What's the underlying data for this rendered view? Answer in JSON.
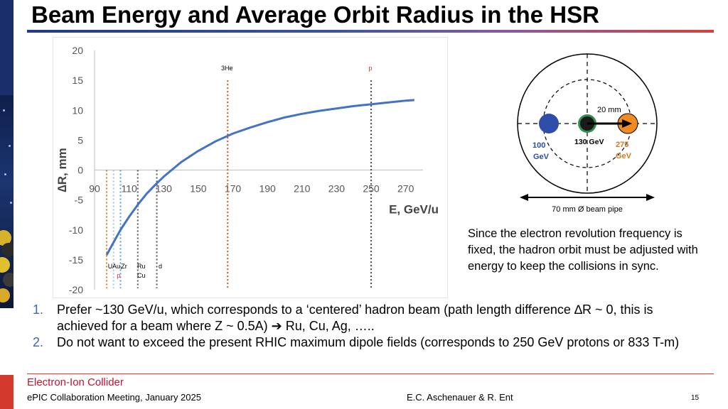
{
  "slide": {
    "title": "Beam Energy and Average Orbit Radius in the HSR",
    "page_number": "15"
  },
  "footer": {
    "logo_text": "Electron-Ion Collider",
    "meeting": "ePIC Collaboration Meeting, January 2025",
    "authors": "E.C. Aschenauer & R. Ent"
  },
  "ring_diagram": {
    "label_20mm": "20 mm",
    "label_100": "100",
    "label_100_unit": "GeV",
    "label_130": "130 GeV",
    "label_275": "275",
    "label_275_unit": "GeV",
    "pipe_label": "70 mm Ø beam pipe",
    "colors": {
      "low": "#2e4da8",
      "mid": "#2f8f4a",
      "high": "#f08a22",
      "mid_label": "#000000",
      "low_label": "#2e4da8",
      "high_label": "#d07820"
    }
  },
  "explanation": "Since the electron revolution frequency is fixed, the hadron orbit must be adjusted with energy to keep the collisions in sync.",
  "bullets": [
    {
      "num": "1.",
      "text": "Prefer ~130 GeV/u, which corresponds to a ‘centered’ hadron beam (path length difference ∆R ~ 0, this is achieved for a beam where Z ~ 0.5A) ➔ Ru, Cu, Ag, ….."
    },
    {
      "num": "2.",
      "text": "Do not want to exceed the present RHIC maximum dipole fields (corresponds to 250 GeV protons or 833 T-m)"
    }
  ],
  "chart_data": {
    "type": "line",
    "title": "",
    "xlabel": "E, GeV/u",
    "ylabel": "∆R, mm",
    "xlim": [
      90,
      280
    ],
    "ylim": [
      -20,
      20
    ],
    "x_ticks": [
      90,
      110,
      130,
      150,
      170,
      190,
      210,
      230,
      250,
      270
    ],
    "y_ticks": [
      20,
      15,
      10,
      5,
      0,
      -5,
      -10,
      -15,
      -20
    ],
    "grid": false,
    "series": [
      {
        "color": "#4472c4",
        "x": [
          97,
          100,
          105,
          110,
          115,
          120,
          125,
          130,
          140,
          150,
          160,
          170,
          180,
          190,
          200,
          210,
          220,
          230,
          240,
          250,
          260,
          270,
          275
        ],
        "y": [
          -14.2,
          -12.6,
          -10.0,
          -7.8,
          -5.8,
          -4.0,
          -2.5,
          -1.1,
          1.3,
          3.2,
          4.8,
          6.1,
          7.1,
          8.0,
          8.8,
          9.4,
          9.9,
          10.3,
          10.7,
          11.0,
          11.3,
          11.6,
          11.7
        ]
      }
    ],
    "markers": [
      {
        "x": 97,
        "y_top": 0,
        "color": "#e07b30",
        "label": "U",
        "label_color": "#000000"
      },
      {
        "x": 101,
        "y_top": 0,
        "color": "#a7c4e0",
        "label": "Au,",
        "label_color": "#000000",
        "sublabel": "p",
        "sublabel_color": "#d32f2f"
      },
      {
        "x": 105,
        "y_top": 0,
        "color": "#5b9bd5",
        "label": "Zr",
        "label_color": "#000000"
      },
      {
        "x": 115,
        "y_top": 0,
        "color": "#555555",
        "label": "Ru",
        "label_color": "#000000",
        "sublabel": "Cu",
        "sublabel_color": "#000000"
      },
      {
        "x": 126,
        "y_top": 0,
        "color": "#555555",
        "label": "d",
        "label_color": "#000000"
      },
      {
        "x": 167,
        "y_top": 15,
        "color": "#c55a11",
        "label": "3He",
        "label_color": "#000000"
      },
      {
        "x": 250,
        "y_top": 15,
        "color": "#444444",
        "label": "p",
        "label_color": "#d32f2f"
      }
    ]
  }
}
